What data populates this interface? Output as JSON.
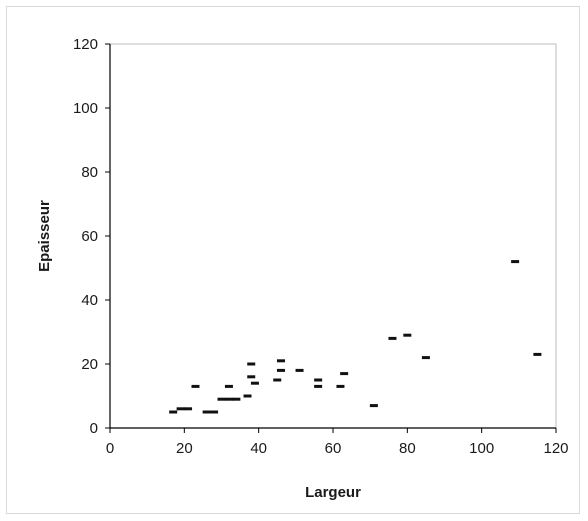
{
  "chart_data": {
    "type": "scatter",
    "title": "",
    "xlabel": "Largeur",
    "ylabel": "Epaisseur",
    "xlim": [
      0,
      120
    ],
    "ylim": [
      0,
      120
    ],
    "xticks": [
      0,
      20,
      40,
      60,
      80,
      100,
      120
    ],
    "yticks": [
      0,
      20,
      40,
      60,
      80,
      100,
      120
    ],
    "grid": false,
    "legend": "none",
    "marker": "dash",
    "colors": {
      "marker": "#111111",
      "axis": "#000000",
      "plot_border": "#bdbdbd",
      "frame": "#d9d9d9"
    },
    "series": [
      {
        "points": [
          [
            17,
            5
          ],
          [
            19,
            6
          ],
          [
            21,
            6
          ],
          [
            23,
            13
          ],
          [
            26,
            5
          ],
          [
            28,
            5
          ],
          [
            30,
            9
          ],
          [
            32,
            9
          ],
          [
            32,
            13
          ],
          [
            34,
            9
          ],
          [
            37,
            10
          ],
          [
            38,
            20
          ],
          [
            38,
            16
          ],
          [
            39,
            14
          ],
          [
            45,
            15
          ],
          [
            46,
            21
          ],
          [
            46,
            18
          ],
          [
            51,
            18
          ],
          [
            56,
            13
          ],
          [
            56,
            15
          ],
          [
            62,
            13
          ],
          [
            63,
            17
          ],
          [
            71,
            7
          ],
          [
            76,
            28
          ],
          [
            80,
            29
          ],
          [
            85,
            22
          ],
          [
            109,
            52
          ],
          [
            115,
            23
          ]
        ]
      }
    ]
  }
}
